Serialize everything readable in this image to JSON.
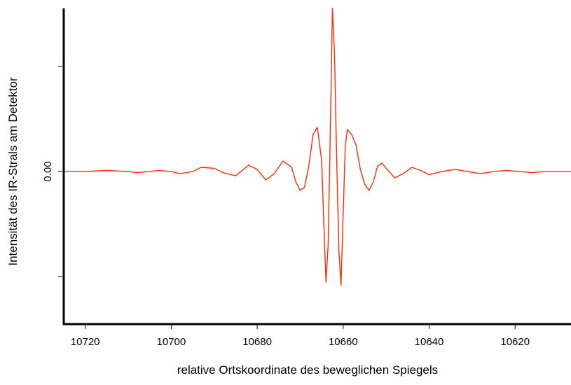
{
  "chart_data": {
    "type": "line",
    "xlabel": "relative Ortskoordinate des beweglichen Spiegels",
    "ylabel": "Intensität des IR-Strals am Detektor",
    "xlim": [
      10725,
      10607
    ],
    "x_reversed": true,
    "ylim": [
      -1.45,
      1.55
    ],
    "x_ticks": [
      10720,
      10700,
      10680,
      10660,
      10640,
      10620
    ],
    "x_tick_labels": [
      "10720",
      "10700",
      "10680",
      "10660",
      "10640",
      "10620"
    ],
    "y_ticks": [
      -1.0,
      0.0,
      1.0
    ],
    "y_tick_labels": [
      "",
      "0.00",
      ""
    ],
    "grid": false,
    "legend": "none",
    "line_color": "#ff2a00",
    "series": [
      {
        "x": [
          10725,
          10720,
          10715,
          10710,
          10708,
          10705,
          10703,
          10700,
          10698,
          10695,
          10693,
          10690,
          10688,
          10685,
          10682,
          10680,
          10678,
          10676,
          10674,
          10672,
          10671,
          10670,
          10669,
          10668,
          10667,
          10666,
          10665,
          10664.5,
          10664,
          10663.5,
          10663,
          10662.5,
          10662,
          10661.5,
          10661,
          10660.5,
          10660,
          10659.5,
          10659,
          10658,
          10657,
          10656,
          10655,
          10654,
          10653,
          10652,
          10651,
          10650,
          10648,
          10646,
          10644,
          10642,
          10640,
          10637,
          10634,
          10631,
          10628,
          10625,
          10622,
          10619,
          10616,
          10613,
          10610,
          10607
        ],
        "y": [
          0.0,
          0.0,
          0.01,
          0.0,
          -0.01,
          0.0,
          0.01,
          0.0,
          -0.02,
          0.0,
          0.04,
          0.03,
          -0.01,
          -0.04,
          0.06,
          0.02,
          -0.08,
          -0.02,
          0.1,
          0.04,
          -0.1,
          -0.18,
          -0.15,
          0.05,
          0.35,
          0.42,
          0.1,
          -0.5,
          -1.05,
          -0.7,
          0.35,
          1.55,
          1.1,
          0.1,
          -0.75,
          -1.08,
          -0.4,
          0.25,
          0.4,
          0.35,
          0.25,
          0.02,
          -0.12,
          -0.18,
          -0.1,
          0.05,
          0.08,
          0.03,
          -0.06,
          -0.02,
          0.04,
          0.01,
          -0.03,
          0.0,
          0.02,
          0.0,
          -0.02,
          0.0,
          0.01,
          0.0,
          -0.01,
          0.0,
          0.0,
          0.0
        ]
      }
    ]
  }
}
